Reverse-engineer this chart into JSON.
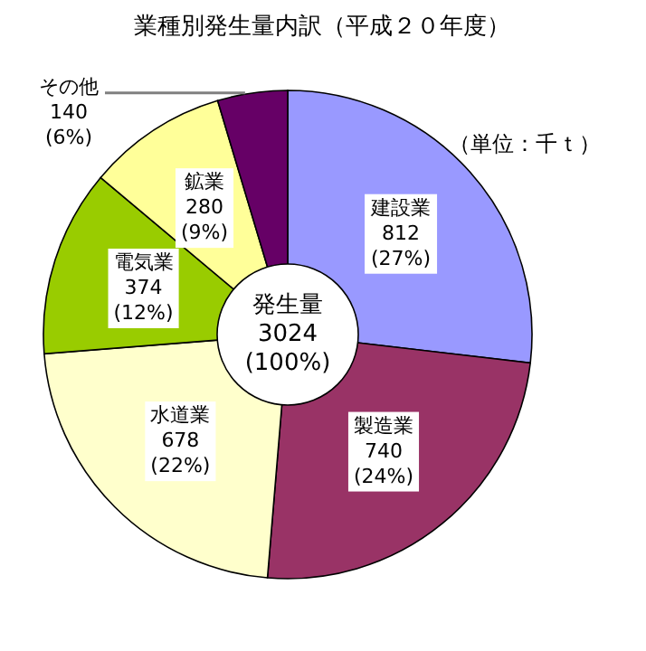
{
  "chart_data": {
    "type": "donut",
    "title": "業種別発生量内訳（平成２０年度）",
    "categories": [
      "建設業",
      "製造業",
      "水道業",
      "電気業",
      "鉱業",
      "その他"
    ],
    "values": [
      812,
      740,
      678,
      374,
      280,
      140
    ],
    "colors": [
      "#9999ff",
      "#993366",
      "#ffffcc",
      "#99cc00",
      "#ffff99",
      "#660066"
    ],
    "value_labels": [
      "812 (27%)",
      "740 (24%)",
      "678 (22%)",
      "374 (12%)",
      "280 (9%)",
      "140 (6%)"
    ],
    "annotations": [
      "（単位：千ｔ）",
      "発生量 3024 (100%)"
    ]
  }
}
